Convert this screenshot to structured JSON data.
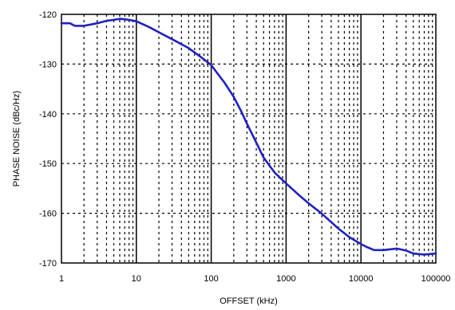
{
  "chart_data": {
    "type": "line",
    "title": "",
    "xlabel": "OFFSET (kHz)",
    "ylabel": "PHASE NOISE (dBc/Hz)",
    "x_scale": "log",
    "xlim": [
      1,
      100000
    ],
    "ylim": [
      -170,
      -120
    ],
    "x_ticks": [
      1,
      10,
      100,
      1000,
      10000,
      100000
    ],
    "x_tick_labels": [
      "1",
      "10",
      "100",
      "1000",
      "10000",
      "100000"
    ],
    "y_ticks": [
      -120,
      -130,
      -140,
      -150,
      -160,
      -170
    ],
    "y_tick_labels": [
      "-120",
      "-130",
      "-140",
      "-150",
      "-160",
      "-170"
    ],
    "grid": true,
    "series": [
      {
        "color": "#1f22c2",
        "x": [
          1,
          1.3,
          1.5,
          2,
          3,
          4,
          5,
          6,
          7,
          8,
          10,
          15,
          20,
          30,
          50,
          70,
          100,
          120,
          150,
          200,
          250,
          300,
          400,
          500,
          700,
          1000,
          1500,
          2000,
          3000,
          5000,
          7000,
          10000,
          12000,
          15000,
          20000,
          30000,
          40000,
          50000,
          70000,
          100000
        ],
        "y": [
          -121.8,
          -121.8,
          -122.3,
          -122.3,
          -121.8,
          -121.3,
          -121.1,
          -120.9,
          -121.0,
          -121.1,
          -121.4,
          -122.6,
          -123.6,
          -125.0,
          -126.8,
          -128.4,
          -130.2,
          -131.8,
          -133.7,
          -136.6,
          -139.4,
          -142.0,
          -145.8,
          -148.8,
          -151.8,
          -154.0,
          -156.4,
          -158.0,
          -160.1,
          -163.1,
          -164.8,
          -166.2,
          -166.8,
          -167.4,
          -167.4,
          -167.1,
          -167.5,
          -168.1,
          -168.3,
          -168.1
        ]
      }
    ]
  }
}
